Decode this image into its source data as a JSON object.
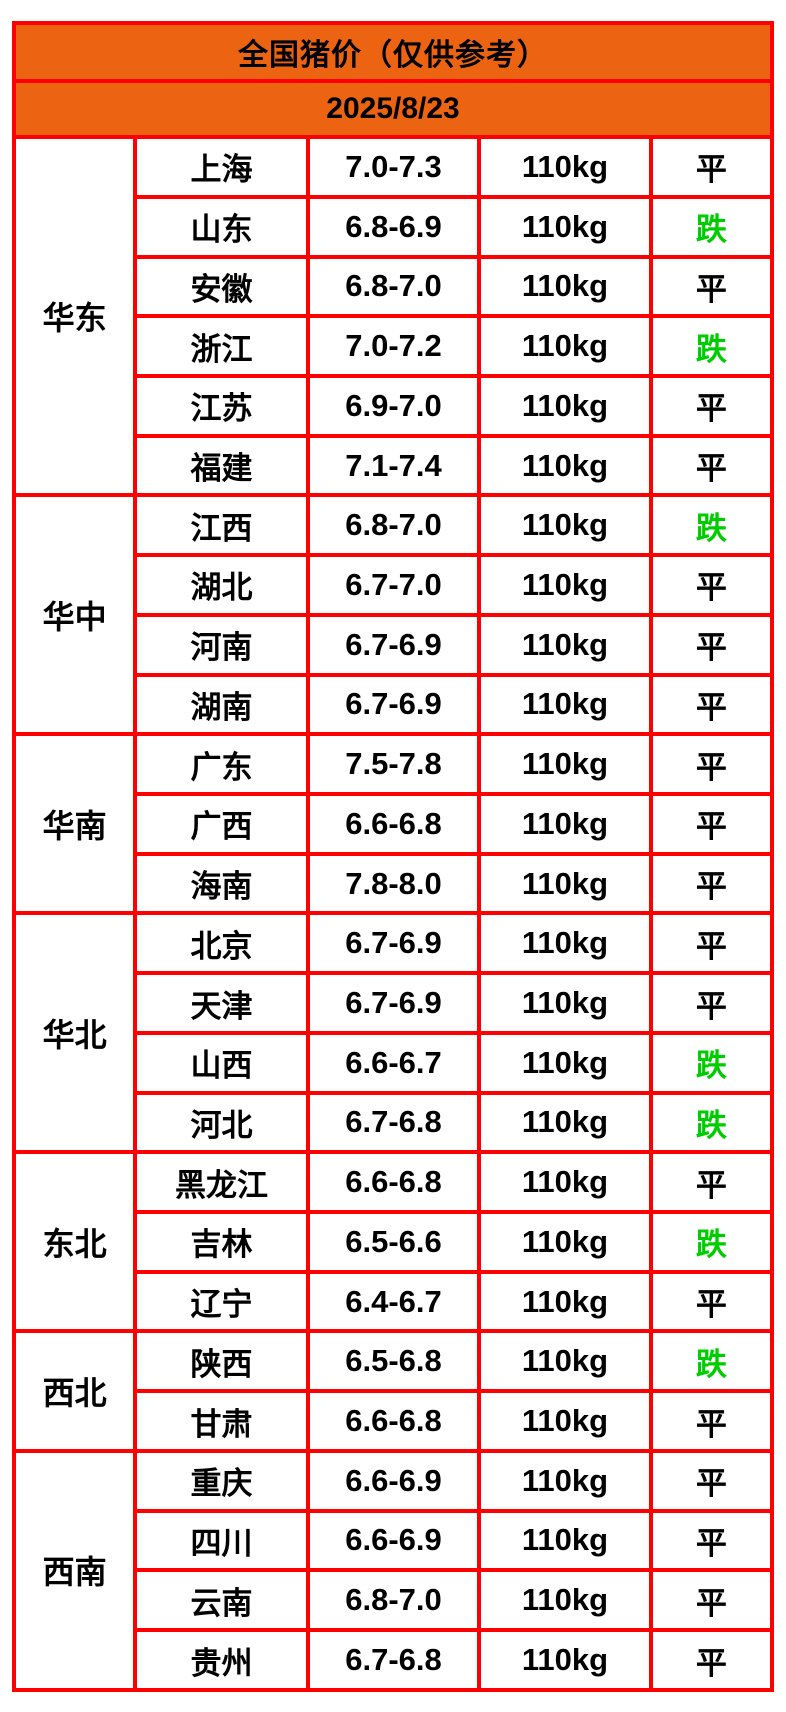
{
  "title": "全国猪价（仅供参考）",
  "date": "2025/8/23",
  "colors": {
    "header_orange": "#EC6311",
    "border_red": "#FF0000",
    "down_green": "#00CD00",
    "flat_black": "#000000",
    "background_white": "#FFFFFF"
  },
  "status_legend": {
    "flat": "平",
    "down": "跌"
  },
  "chart_data": {
    "type": "table",
    "title": "全国猪价（仅供参考）",
    "date": "2025/8/23",
    "regions": [
      {
        "name": "华东",
        "rows": [
          {
            "province": "上海",
            "price": "7.0-7.3",
            "weight": "110kg",
            "status": "平",
            "trend": "flat"
          },
          {
            "province": "山东",
            "price": "6.8-6.9",
            "weight": "110kg",
            "status": "跌",
            "trend": "down"
          },
          {
            "province": "安徽",
            "price": "6.8-7.0",
            "weight": "110kg",
            "status": "平",
            "trend": "flat"
          },
          {
            "province": "浙江",
            "price": "7.0-7.2",
            "weight": "110kg",
            "status": "跌",
            "trend": "down"
          },
          {
            "province": "江苏",
            "price": "6.9-7.0",
            "weight": "110kg",
            "status": "平",
            "trend": "flat"
          },
          {
            "province": "福建",
            "price": "7.1-7.4",
            "weight": "110kg",
            "status": "平",
            "trend": "flat"
          }
        ]
      },
      {
        "name": "华中",
        "rows": [
          {
            "province": "江西",
            "price": "6.8-7.0",
            "weight": "110kg",
            "status": "跌",
            "trend": "down"
          },
          {
            "province": "湖北",
            "price": "6.7-7.0",
            "weight": "110kg",
            "status": "平",
            "trend": "flat"
          },
          {
            "province": "河南",
            "price": "6.7-6.9",
            "weight": "110kg",
            "status": "平",
            "trend": "flat"
          },
          {
            "province": "湖南",
            "price": "6.7-6.9",
            "weight": "110kg",
            "status": "平",
            "trend": "flat"
          }
        ]
      },
      {
        "name": "华南",
        "rows": [
          {
            "province": "广东",
            "price": "7.5-7.8",
            "weight": "110kg",
            "status": "平",
            "trend": "flat"
          },
          {
            "province": "广西",
            "price": "6.6-6.8",
            "weight": "110kg",
            "status": "平",
            "trend": "flat"
          },
          {
            "province": "海南",
            "price": "7.8-8.0",
            "weight": "110kg",
            "status": "平",
            "trend": "flat"
          }
        ]
      },
      {
        "name": "华北",
        "rows": [
          {
            "province": "北京",
            "price": "6.7-6.9",
            "weight": "110kg",
            "status": "平",
            "trend": "flat"
          },
          {
            "province": "天津",
            "price": "6.7-6.9",
            "weight": "110kg",
            "status": "平",
            "trend": "flat"
          },
          {
            "province": "山西",
            "price": "6.6-6.7",
            "weight": "110kg",
            "status": "跌",
            "trend": "down"
          },
          {
            "province": "河北",
            "price": "6.7-6.8",
            "weight": "110kg",
            "status": "跌",
            "trend": "down"
          }
        ]
      },
      {
        "name": "东北",
        "rows": [
          {
            "province": "黑龙江",
            "price": "6.6-6.8",
            "weight": "110kg",
            "status": "平",
            "trend": "flat"
          },
          {
            "province": "吉林",
            "price": "6.5-6.6",
            "weight": "110kg",
            "status": "跌",
            "trend": "down"
          },
          {
            "province": "辽宁",
            "price": "6.4-6.7",
            "weight": "110kg",
            "status": "平",
            "trend": "flat"
          }
        ]
      },
      {
        "name": "西北",
        "rows": [
          {
            "province": "陕西",
            "price": "6.5-6.8",
            "weight": "110kg",
            "status": "跌",
            "trend": "down"
          },
          {
            "province": "甘肃",
            "price": "6.6-6.8",
            "weight": "110kg",
            "status": "平",
            "trend": "flat"
          }
        ]
      },
      {
        "name": "西南",
        "rows": [
          {
            "province": "重庆",
            "price": "6.6-6.9",
            "weight": "110kg",
            "status": "平",
            "trend": "flat"
          },
          {
            "province": "四川",
            "price": "6.6-6.9",
            "weight": "110kg",
            "status": "平",
            "trend": "flat"
          },
          {
            "province": "云南",
            "price": "6.8-7.0",
            "weight": "110kg",
            "status": "平",
            "trend": "flat"
          },
          {
            "province": "贵州",
            "price": "6.7-6.8",
            "weight": "110kg",
            "status": "平",
            "trend": "flat"
          }
        ]
      }
    ]
  }
}
